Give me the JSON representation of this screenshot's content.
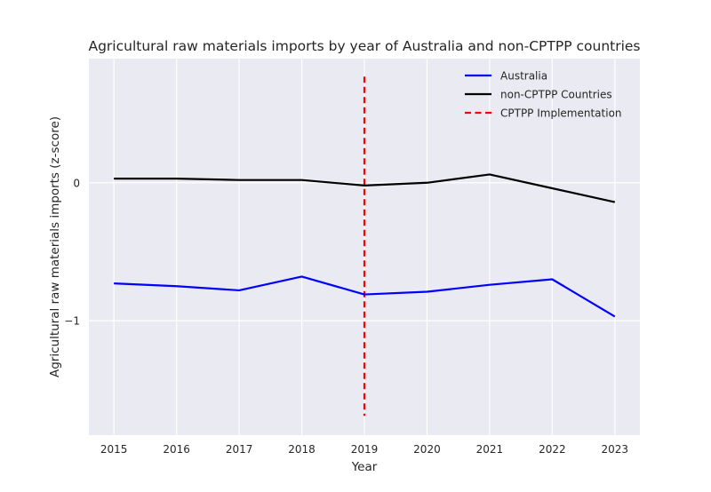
{
  "chart_data": {
    "type": "line",
    "title": "Agricultural raw materials imports by year of Australia and non-CPTPP countries",
    "xlabel": "Year",
    "ylabel": "Agricultural raw materials imports (z-score)",
    "x": [
      2015,
      2016,
      2017,
      2018,
      2019,
      2020,
      2021,
      2022,
      2023
    ],
    "xticks": [
      "2015",
      "2016",
      "2017",
      "2018",
      "2019",
      "2020",
      "2021",
      "2022",
      "2023"
    ],
    "yticks": [
      {
        "value": 0,
        "label": "0"
      },
      {
        "value": -1,
        "label": "−1"
      }
    ],
    "xlim": [
      2014.6,
      2023.4
    ],
    "ylim": [
      -1.83,
      0.9
    ],
    "grid": true,
    "legend_position": "top-right",
    "series": [
      {
        "name": "Australia",
        "color": "#0000ff",
        "style": "solid",
        "values": [
          -0.73,
          -0.75,
          -0.78,
          -0.68,
          -0.81,
          -0.79,
          -0.74,
          -0.7,
          -0.97
        ]
      },
      {
        "name": "non-CPTPP Countries",
        "color": "#000000",
        "style": "solid",
        "values": [
          0.03,
          0.03,
          0.02,
          0.02,
          -0.02,
          0.0,
          0.06,
          -0.04,
          -0.14
        ]
      }
    ],
    "vline": {
      "name": "CPTPP Implementation",
      "x": 2019,
      "y_range": [
        -1.69,
        0.77
      ],
      "color": "#ff0000",
      "style": "dashed"
    }
  }
}
